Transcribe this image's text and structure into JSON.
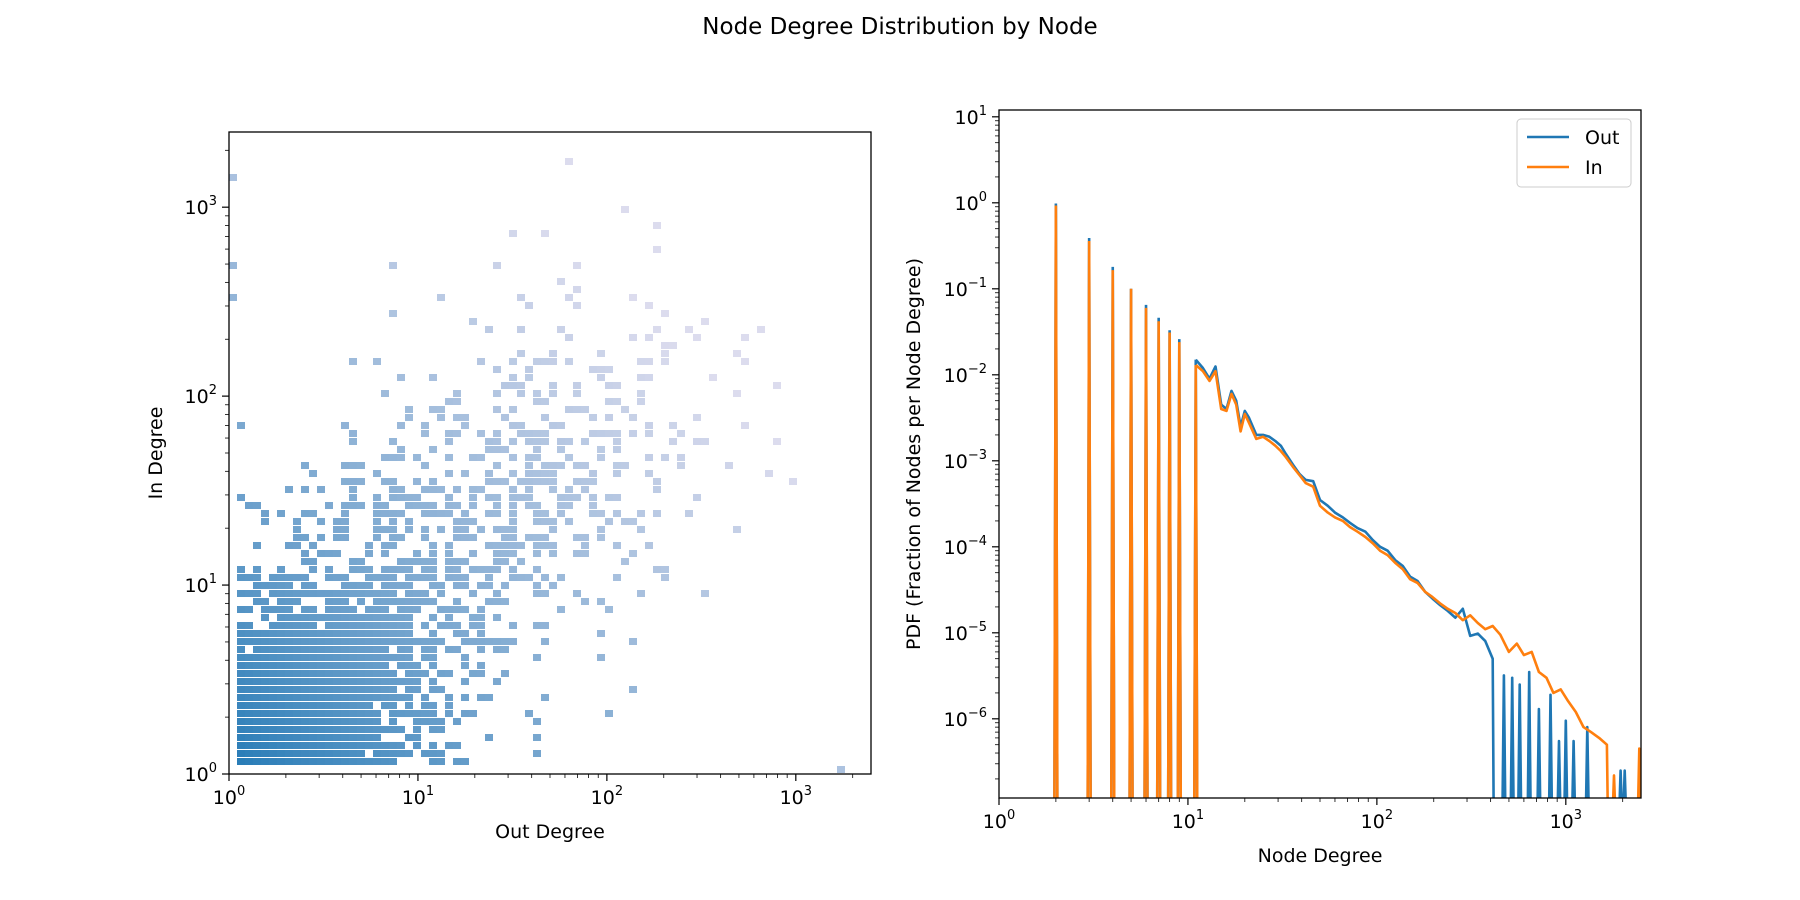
{
  "figure": {
    "title": "Node Degree Distribution by Node"
  },
  "chart_data": [
    {
      "type": "heatmap",
      "subtype": "2d-histogram",
      "title": "",
      "xlabel": "Out Degree",
      "ylabel": "In Degree",
      "xscale": "log",
      "yscale": "log",
      "xlim": [
        1,
        2500
      ],
      "ylim": [
        1,
        2500
      ],
      "xticks": [
        {
          "base": "10",
          "exp": "0"
        },
        {
          "base": "10",
          "exp": "1"
        },
        {
          "base": "10",
          "exp": "2"
        },
        {
          "base": "10",
          "exp": "3"
        }
      ],
      "yticks": [
        {
          "base": "10",
          "exp": "0"
        },
        {
          "base": "10",
          "exp": "1"
        },
        {
          "base": "10",
          "exp": "2"
        },
        {
          "base": "10",
          "exp": "3"
        }
      ],
      "grid": false,
      "colormap": {
        "dense": "#1f77b4",
        "sparse": "#dcdcee"
      },
      "note_values": "cell density is highest at low degrees and fades toward high degrees; individual cell counts are not printed"
    },
    {
      "type": "line",
      "title": "",
      "xlabel": "Node Degree",
      "ylabel": "PDF (Fraction of Nodes per Node Degree)",
      "xscale": "log",
      "yscale": "log",
      "xlim": [
        1,
        2500
      ],
      "ylim": [
        1.2e-07,
        12
      ],
      "xticks": [
        {
          "base": "10",
          "exp": "0"
        },
        {
          "base": "10",
          "exp": "1"
        },
        {
          "base": "10",
          "exp": "2"
        },
        {
          "base": "10",
          "exp": "3"
        }
      ],
      "yticks": [
        {
          "base": "10",
          "exp": "−6"
        },
        {
          "base": "10",
          "exp": "−5"
        },
        {
          "base": "10",
          "exp": "−4"
        },
        {
          "base": "10",
          "exp": "−3"
        },
        {
          "base": "10",
          "exp": "−2"
        },
        {
          "base": "10",
          "exp": "−1"
        },
        {
          "base": "10",
          "exp": "0"
        },
        {
          "base": "10",
          "exp": "1"
        }
      ],
      "grid": false,
      "legend": "top-right",
      "series": [
        {
          "name": "Out",
          "color": "#1f77b4",
          "spikes": [
            [
              2,
              0.98
            ],
            [
              3,
              0.39
            ],
            [
              4,
              0.18
            ],
            [
              5,
              0.1
            ],
            [
              6,
              0.065
            ],
            [
              7,
              0.046
            ],
            [
              8,
              0.033
            ],
            [
              9,
              0.026
            ],
            [
              11,
              0.015
            ]
          ],
          "points": [
            [
              11,
              0.015
            ],
            [
              12,
              0.012
            ],
            [
              13,
              0.009
            ],
            [
              14,
              0.0125
            ],
            [
              15,
              0.0045
            ],
            [
              16,
              0.004
            ],
            [
              17,
              0.0065
            ],
            [
              18,
              0.005
            ],
            [
              19,
              0.0025
            ],
            [
              20,
              0.0038
            ],
            [
              21,
              0.0032
            ],
            [
              23,
              0.002
            ],
            [
              25,
              0.002
            ],
            [
              27,
              0.0019
            ],
            [
              29,
              0.0017
            ],
            [
              31,
              0.0015
            ],
            [
              33,
              0.0012
            ],
            [
              36,
              0.0009
            ],
            [
              39,
              0.0007
            ],
            [
              42,
              0.0006
            ],
            [
              46,
              0.00058
            ],
            [
              50,
              0.00035
            ],
            [
              55,
              0.0003
            ],
            [
              60,
              0.00025
            ],
            [
              66,
              0.00022
            ],
            [
              72,
              0.00019
            ],
            [
              79,
              0.000165
            ],
            [
              87,
              0.00015
            ],
            [
              95,
              0.00012
            ],
            [
              104,
              0.0001
            ],
            [
              114,
              9e-05
            ],
            [
              125,
              7e-05
            ],
            [
              137,
              6e-05
            ],
            [
              150,
              4.5e-05
            ],
            [
              164,
              4e-05
            ],
            [
              180,
              3e-05
            ],
            [
              197,
              2.5e-05
            ],
            [
              216,
              2.1e-05
            ],
            [
              237,
              1.8e-05
            ],
            [
              260,
              1.5e-05
            ],
            [
              285,
              1.9e-05
            ],
            [
              312,
              9.2e-06
            ],
            [
              342,
              9.8e-06
            ],
            [
              375,
              8e-06
            ],
            [
              410,
              5e-06
            ]
          ],
          "tail": [
            [
              470,
              3.2e-06
            ],
            [
              520,
              3e-06
            ],
            [
              570,
              2.5e-06
            ],
            [
              640,
              3.5e-06
            ],
            [
              720,
              1.3e-06
            ],
            [
              830,
              1.9e-06
            ],
            [
              920,
              5.5e-07
            ],
            [
              1000,
              9.5e-07
            ],
            [
              1100,
              5.5e-07
            ],
            [
              1300,
              8e-07
            ],
            [
              1950,
              2.5e-07
            ],
            [
              2050,
              2.5e-07
            ]
          ]
        },
        {
          "name": "In",
          "color": "#ff7f0e",
          "spikes": [
            [
              2,
              0.93
            ],
            [
              3,
              0.36
            ],
            [
              4,
              0.165
            ],
            [
              5,
              0.1
            ],
            [
              6,
              0.06
            ],
            [
              7,
              0.042
            ],
            [
              8,
              0.031
            ],
            [
              9,
              0.024
            ],
            [
              11,
              0.013
            ]
          ],
          "points": [
            [
              11,
              0.013
            ],
            [
              12,
              0.011
            ],
            [
              13,
              0.0085
            ],
            [
              14,
              0.011
            ],
            [
              15,
              0.004
            ],
            [
              16,
              0.0038
            ],
            [
              17,
              0.006
            ],
            [
              18,
              0.0045
            ],
            [
              19,
              0.0022
            ],
            [
              20,
              0.0035
            ],
            [
              21,
              0.0028
            ],
            [
              23,
              0.0018
            ],
            [
              25,
              0.0019
            ],
            [
              27,
              0.0017
            ],
            [
              29,
              0.0015
            ],
            [
              31,
              0.0013
            ],
            [
              33,
              0.0011
            ],
            [
              36,
              0.00085
            ],
            [
              39,
              0.00068
            ],
            [
              42,
              0.00055
            ],
            [
              46,
              0.0005
            ],
            [
              50,
              0.0003
            ],
            [
              55,
              0.00025
            ],
            [
              60,
              0.00022
            ],
            [
              66,
              0.0002
            ],
            [
              72,
              0.00017
            ],
            [
              79,
              0.00015
            ],
            [
              87,
              0.00013
            ],
            [
              95,
              0.00011
            ],
            [
              104,
              9e-05
            ],
            [
              114,
              8e-05
            ],
            [
              125,
              6.5e-05
            ],
            [
              137,
              5.5e-05
            ],
            [
              150,
              4.2e-05
            ],
            [
              164,
              3.8e-05
            ],
            [
              180,
              3e-05
            ],
            [
              197,
              2.6e-05
            ],
            [
              216,
              2.2e-05
            ],
            [
              237,
              1.9e-05
            ],
            [
              260,
              1.7e-05
            ],
            [
              285,
              1.4e-05
            ],
            [
              312,
              1.6e-05
            ],
            [
              342,
              1.3e-05
            ],
            [
              375,
              1.1e-05
            ],
            [
              410,
              1.2e-05
            ],
            [
              450,
              9.5e-06
            ],
            [
              500,
              6e-06
            ],
            [
              550,
              7.5e-06
            ],
            [
              600,
              5.5e-06
            ],
            [
              660,
              6e-06
            ],
            [
              720,
              3.5e-06
            ],
            [
              790,
              3e-06
            ],
            [
              860,
              2e-06
            ],
            [
              940,
              2.2e-06
            ],
            [
              1030,
              1.6e-06
            ],
            [
              1130,
              1.2e-06
            ],
            [
              1240,
              8e-07
            ],
            [
              1360,
              7e-07
            ],
            [
              1500,
              6e-07
            ],
            [
              1650,
              5e-07
            ]
          ],
          "tail": [
            [
              1800,
              2.2e-07
            ],
            [
              2450,
              4.5e-07
            ]
          ]
        }
      ]
    }
  ]
}
